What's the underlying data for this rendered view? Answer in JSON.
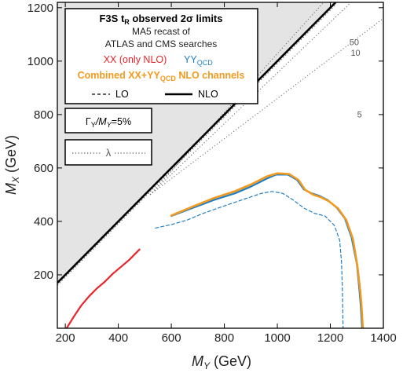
{
  "chart_data": {
    "type": "line",
    "title": "F3S t_R observed 2σ limits",
    "title_main": "F3S t",
    "title_sub": "R",
    "title_rest": " observed 2σ limits",
    "subtitle_lines": [
      "MA5 recast of",
      "ATLAS and CMS searches"
    ],
    "xlabel_main": "M",
    "xlabel_sub": "Y",
    "xlabel_unit": " (GeV)",
    "ylabel_main": "M",
    "ylabel_sub": "X",
    "ylabel_unit": " (GeV)",
    "xlim": [
      170,
      1400
    ],
    "ylim": [
      0,
      1220
    ],
    "xticks": [
      "200",
      "400",
      "600",
      "800",
      "1000",
      "1200",
      "1400"
    ],
    "xtick_values": [
      200,
      400,
      600,
      800,
      1000,
      1200,
      1400
    ],
    "yticks": [
      "200",
      "400",
      "600",
      "800",
      "1000",
      "1200"
    ],
    "ytick_values": [
      200,
      400,
      600,
      800,
      1000,
      1200
    ],
    "excluded_region": "M_X > M_Y",
    "legend": {
      "xx_label": "XX (only NLO)",
      "yy_label_main": "YY",
      "yy_label_sub": "QCD",
      "combined_label_a": "Combined XX+YY",
      "combined_label_sub": "QCD",
      "combined_label_b": " NLO channels",
      "lo_label": "LO",
      "nlo_label": "NLO",
      "width_label_a": "Γ",
      "width_label_sub1": "Y",
      "width_label_b": "/M",
      "width_label_sub2": "Y",
      "width_label_c": "=5%",
      "lambda_label": "λ"
    },
    "lambda_contours": [
      {
        "label": "50",
        "slope": 1.1,
        "x_end": 1330,
        "label_at": [
          1290,
          1060
        ]
      },
      {
        "label": "10",
        "slope": 0.95,
        "x_end": 1340,
        "label_at": [
          1295,
          1020
        ]
      },
      {
        "label": "5",
        "slope": 0.75,
        "x_end": 1395,
        "label_at": [
          1310,
          790
        ]
      }
    ],
    "colors": {
      "xx": "#e8252a",
      "yy": "#1f7fc4",
      "combined": "#f39a1e",
      "diagonal": "#000000",
      "excluded_fill": "#e4e4e4",
      "lambda": "#666666"
    },
    "series": [
      {
        "name": "XX (only NLO)",
        "style": "solid",
        "color": "#e8252a",
        "x": [
          205,
          230,
          260,
          290,
          320,
          350,
          380,
          410,
          440,
          465,
          480
        ],
        "y": [
          0,
          40,
          85,
          120,
          150,
          175,
          205,
          230,
          255,
          280,
          295
        ]
      },
      {
        "name": "YY_QCD NLO",
        "style": "solid",
        "color": "#1f7fc4",
        "x": [
          600,
          680,
          760,
          840,
          900,
          960,
          995,
          1040,
          1075,
          1100,
          1130,
          1160,
          1190,
          1225,
          1255,
          1280,
          1300,
          1310,
          1315,
          1318,
          1320
        ],
        "y": [
          420,
          450,
          480,
          505,
          530,
          560,
          575,
          575,
          555,
          520,
          505,
          495,
          480,
          450,
          410,
          340,
          240,
          140,
          80,
          30,
          0
        ]
      },
      {
        "name": "YY_QCD LO",
        "style": "dashed",
        "color": "#1f7fc4",
        "x": [
          540,
          600,
          660,
          720,
          800,
          880,
          940,
          980,
          1020,
          1060,
          1100,
          1140,
          1180,
          1215,
          1235,
          1242,
          1245,
          1247,
          1248
        ],
        "y": [
          375,
          388,
          405,
          430,
          458,
          485,
          505,
          512,
          505,
          480,
          450,
          430,
          420,
          385,
          330,
          250,
          160,
          60,
          0
        ]
      },
      {
        "name": "Combined XX+YY_QCD NLO",
        "style": "solid",
        "color": "#f39a1e",
        "x": [
          600,
          680,
          760,
          840,
          900,
          960,
          1000,
          1045,
          1080,
          1105,
          1135,
          1165,
          1195,
          1230,
          1260,
          1285,
          1302,
          1313,
          1318,
          1321,
          1323
        ],
        "y": [
          422,
          455,
          487,
          513,
          538,
          568,
          580,
          577,
          555,
          518,
          500,
          490,
          475,
          448,
          405,
          335,
          235,
          140,
          80,
          30,
          0
        ]
      }
    ]
  }
}
